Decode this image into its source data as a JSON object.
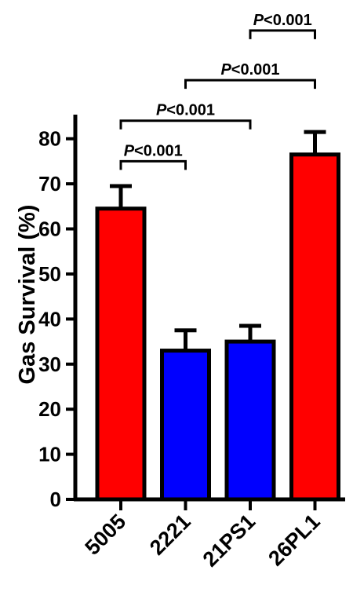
{
  "chart_data": {
    "type": "bar",
    "title": "",
    "xlabel": "",
    "ylabel": "Gas Survival (%)",
    "ylim": [
      0,
      85
    ],
    "yticks": [
      0,
      10,
      20,
      30,
      40,
      50,
      60,
      70,
      80
    ],
    "categories": [
      "5005",
      "2221",
      "21PS1",
      "26PL1"
    ],
    "values": [
      64.5,
      33.0,
      35.0,
      76.5
    ],
    "errors": [
      5.0,
      4.5,
      3.5,
      5.0
    ],
    "colors": [
      "#ff0000",
      "#0000ff",
      "#0000ff",
      "#ff0000"
    ],
    "grid": false,
    "legend": "none",
    "significance": [
      {
        "from": 0,
        "to": 1,
        "prefix": "P",
        "text": "<0.001"
      },
      {
        "from": 0,
        "to": 2,
        "prefix": "P",
        "text": "<0.001"
      },
      {
        "from": 1,
        "to": 3,
        "prefix": "P",
        "text": "<0.001"
      },
      {
        "from": 2,
        "to": 3,
        "prefix": "P",
        "text": "<0.001"
      }
    ]
  }
}
